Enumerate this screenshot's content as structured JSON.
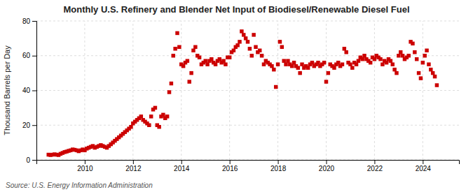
{
  "chart_data": {
    "type": "scatter",
    "title": "Monthly U.S. Refinery and Blender Net Input of Biodiesel/Renewable Diesel Fuel",
    "y_label": "Thousand Barrels per Day",
    "annotations": [
      "Source: U.S. Energy Information Administration"
    ],
    "color": "#cc0000",
    "marker": "square",
    "grid": true,
    "xlim": [
      2008.0,
      2025.5
    ],
    "xticks": [
      2010,
      2012,
      2014,
      2016,
      2018,
      2020,
      2022,
      2024
    ],
    "ylim": [
      0,
      80
    ],
    "yticks": [
      0,
      20,
      40,
      60,
      80
    ],
    "x": [
      2008.5,
      2008.5833333333333,
      2008.6666666666667,
      2008.75,
      2008.8333333333333,
      2008.9166666666667,
      2009,
      2009.0833333333333,
      2009.1666666666667,
      2009.25,
      2009.3333333333333,
      2009.4166666666667,
      2009.5,
      2009.5833333333333,
      2009.6666666666667,
      2009.75,
      2009.8333333333333,
      2009.9166666666667,
      2010,
      2010.0833333333333,
      2010.1666666666667,
      2010.25,
      2010.3333333333333,
      2010.4166666666667,
      2010.5,
      2010.5833333333333,
      2010.6666666666667,
      2010.75,
      2010.8333333333333,
      2010.9166666666667,
      2011,
      2011.0833333333333,
      2011.1666666666667,
      2011.25,
      2011.3333333333333,
      2011.4166666666667,
      2011.5,
      2011.5833333333333,
      2011.6666666666667,
      2011.75,
      2011.8333333333333,
      2011.9166666666667,
      2012,
      2012.0833333333333,
      2012.1666666666667,
      2012.25,
      2012.3333333333333,
      2012.4166666666667,
      2012.5,
      2012.5833333333333,
      2012.6666666666667,
      2012.75,
      2012.8333333333333,
      2012.9166666666667,
      2013,
      2013.0833333333333,
      2013.1666666666667,
      2013.25,
      2013.3333333333333,
      2013.4166666666667,
      2013.5,
      2013.5833333333333,
      2013.6666666666667,
      2013.75,
      2013.8333333333333,
      2013.9166666666667,
      2014,
      2014.0833333333333,
      2014.1666666666667,
      2014.25,
      2014.3333333333333,
      2014.4166666666667,
      2014.5,
      2014.5833333333333,
      2014.6666666666667,
      2014.75,
      2014.8333333333333,
      2014.9166666666667,
      2015,
      2015.0833333333333,
      2015.1666666666667,
      2015.25,
      2015.3333333333333,
      2015.4166666666667,
      2015.5,
      2015.5833333333333,
      2015.6666666666667,
      2015.75,
      2015.8333333333333,
      2015.9166666666667,
      2016,
      2016.0833333333333,
      2016.1666666666667,
      2016.25,
      2016.3333333333333,
      2016.4166666666667,
      2016.5,
      2016.5833333333333,
      2016.6666666666667,
      2016.75,
      2016.8333333333333,
      2016.9166666666667,
      2017,
      2017.0833333333333,
      2017.1666666666667,
      2017.25,
      2017.3333333333333,
      2017.4166666666667,
      2017.5,
      2017.5833333333333,
      2017.6666666666667,
      2017.75,
      2017.8333333333333,
      2017.9166666666667,
      2018,
      2018.0833333333333,
      2018.1666666666667,
      2018.25,
      2018.3333333333333,
      2018.4166666666667,
      2018.5,
      2018.5833333333333,
      2018.6666666666667,
      2018.75,
      2018.8333333333333,
      2018.9166666666667,
      2019,
      2019.0833333333333,
      2019.1666666666667,
      2019.25,
      2019.3333333333333,
      2019.4166666666667,
      2019.5,
      2019.5833333333333,
      2019.6666666666667,
      2019.75,
      2019.8333333333333,
      2019.9166666666667,
      2020,
      2020.0833333333333,
      2020.1666666666667,
      2020.25,
      2020.3333333333333,
      2020.4166666666667,
      2020.5,
      2020.5833333333333,
      2020.6666666666667,
      2020.75,
      2020.8333333333333,
      2020.9166666666667,
      2021,
      2021.0833333333333,
      2021.1666666666667,
      2021.25,
      2021.3333333333333,
      2021.4166666666667,
      2021.5,
      2021.5833333333333,
      2021.6666666666667,
      2021.75,
      2021.8333333333333,
      2021.9166666666667,
      2022,
      2022.0833333333333,
      2022.1666666666667,
      2022.25,
      2022.3333333333333,
      2022.4166666666667,
      2022.5,
      2022.5833333333333,
      2022.6666666666667,
      2022.75,
      2022.8333333333333,
      2022.9166666666667,
      2023,
      2023.0833333333333,
      2023.1666666666667,
      2023.25,
      2023.3333333333333,
      2023.4166666666667,
      2023.5,
      2023.5833333333333,
      2023.6666666666667,
      2023.75,
      2023.8333333333333,
      2023.9166666666667,
      2024,
      2024.0833333333333,
      2024.1666666666667,
      2024.25,
      2024.3333333333333,
      2024.4166666666667,
      2024.5,
      2024.5833333333333
    ],
    "values": [
      3.0,
      2.8,
      3.0,
      3.2,
      3.0,
      2.8,
      3.5,
      4.0,
      4.5,
      4.8,
      5.2,
      5.5,
      6.0,
      5.8,
      5.5,
      5.0,
      5.5,
      6.0,
      5.5,
      6.5,
      7.0,
      7.5,
      8.0,
      7.0,
      7.5,
      8.0,
      8.5,
      8.0,
      7.5,
      7.0,
      8.0,
      9.0,
      10.0,
      11.0,
      12.0,
      13.0,
      14.0,
      15.0,
      16.0,
      17.0,
      18.0,
      19.0,
      21.0,
      22.0,
      23.0,
      24.0,
      25.0,
      23.0,
      22.0,
      21.0,
      20.0,
      25.0,
      29.0,
      30.0,
      20.0,
      19.0,
      25.0,
      26.0,
      24.0,
      25.0,
      39.0,
      44.0,
      60.0,
      64.0,
      73.0,
      65.0,
      55.0,
      54.0,
      56.0,
      57.0,
      45.0,
      50.0,
      63.0,
      65.0,
      60.0,
      59.0,
      55.0,
      56.0,
      57.0,
      55.0,
      57.0,
      58.0,
      56.0,
      55.0,
      57.0,
      58.0,
      56.0,
      57.0,
      55.0,
      59.0,
      59.0,
      62.0,
      63.0,
      65.0,
      66.0,
      68.0,
      74.0,
      72.0,
      70.0,
      68.0,
      64.0,
      60.0,
      72.0,
      65.0,
      62.0,
      63.0,
      60.0,
      55.0,
      57.0,
      56.0,
      55.0,
      54.0,
      52.0,
      42.0,
      55.0,
      68.0,
      65.0,
      57.0,
      55.0,
      57.0,
      55.0,
      54.0,
      56.0,
      54.0,
      53.0,
      50.0,
      55.0,
      53.0,
      54.0,
      53.0,
      55.0,
      56.0,
      54.0,
      55.0,
      56.0,
      54.0,
      55.0,
      56.0,
      45.0,
      50.0,
      55.0,
      54.0,
      53.0,
      55.0,
      56.0,
      54.0,
      55.0,
      64.0,
      62.0,
      56.0,
      55.0,
      53.0,
      56.0,
      55.0,
      57.0,
      59.0,
      58.0,
      60.0,
      58.0,
      57.0,
      56.0,
      59.0,
      58.0,
      60.0,
      59.0,
      58.0,
      55.0,
      57.0,
      56.0,
      58.0,
      57.0,
      55.0,
      52.0,
      50.0,
      60.0,
      62.0,
      60.0,
      58.0,
      59.0,
      60.0,
      68.0,
      67.0,
      62.0,
      58.0,
      50.0,
      47.0,
      56.0,
      60.0,
      63.0,
      55.0,
      52.0,
      50.0,
      48.0,
      43.0
    ]
  }
}
